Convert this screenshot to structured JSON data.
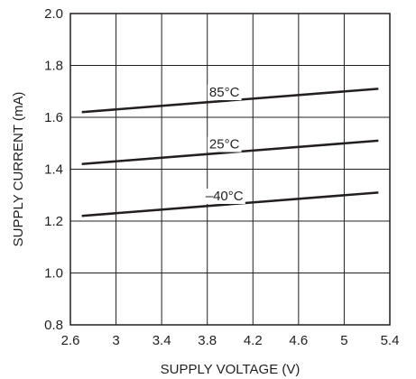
{
  "chart_data": {
    "type": "line",
    "xlabel": "SUPPLY VOLTAGE (V)",
    "ylabel": "SUPPLY CURRENT (mA)",
    "xlim": [
      2.6,
      5.4
    ],
    "ylim": [
      0.8,
      2.0
    ],
    "x_ticks": [
      "2.6",
      "3",
      "3.4",
      "3.8",
      "4.2",
      "4.6",
      "5",
      "5.4"
    ],
    "y_ticks": [
      "0.8",
      "1.0",
      "1.2",
      "1.4",
      "1.6",
      "1.8",
      "2.0"
    ],
    "grid": true,
    "series": [
      {
        "name": "85°C",
        "x": [
          2.7,
          5.3
        ],
        "y": [
          1.62,
          1.71
        ],
        "label_at": [
          3.95,
          1.68
        ]
      },
      {
        "name": "25°C",
        "x": [
          2.7,
          5.3
        ],
        "y": [
          1.42,
          1.51
        ],
        "label_at": [
          3.95,
          1.48
        ]
      },
      {
        "name": "–40°C",
        "x": [
          2.7,
          5.3
        ],
        "y": [
          1.22,
          1.31
        ],
        "label_at": [
          3.95,
          1.28
        ]
      }
    ]
  }
}
